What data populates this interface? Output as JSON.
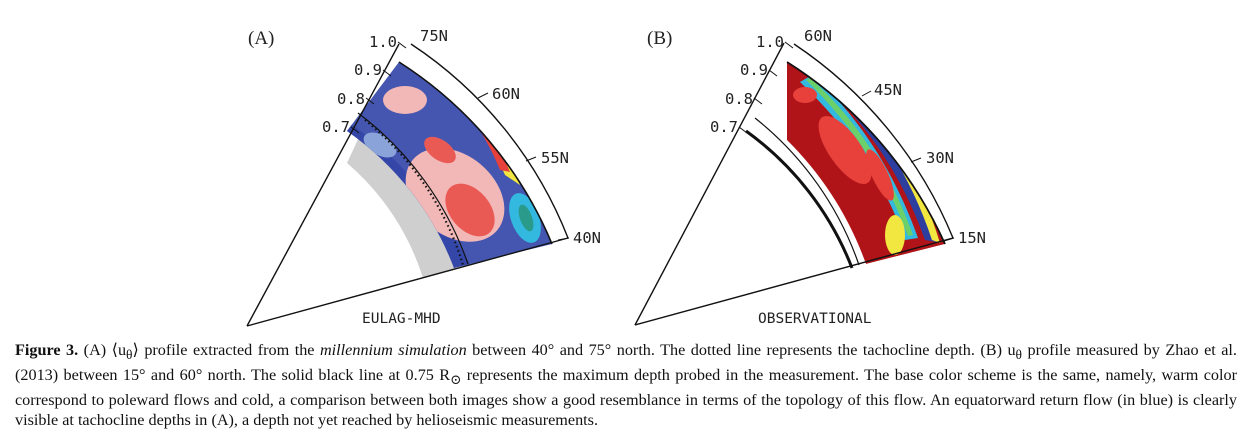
{
  "panelA": {
    "tag": "(A)",
    "title": "EULAG-MHD",
    "radius_labels": [
      "1.0",
      "0.9",
      "0.8",
      "0.7"
    ],
    "lat_labels": [
      "75N",
      "60N",
      "55N",
      "40N"
    ]
  },
  "panelB": {
    "tag": "(B)",
    "title": "OBSERVATIONAL",
    "radius_labels": [
      "1.0",
      "0.9",
      "0.8",
      "0.7"
    ],
    "lat_labels": [
      "60N",
      "45N",
      "30N",
      "15N"
    ]
  },
  "caption": {
    "label": "Figure 3.",
    "part1": " (A) ⟨u",
    "sub1": "θ",
    "part2": "⟩ profile extracted from the ",
    "italic1": "millennium simulation",
    "part3": " between 40° and 75° north. The dotted line represents the tachocline depth. (B) u",
    "sub2": "θ",
    "part4": " profile measured by Zhao et al. (2013) between 15° and 60° north. The solid black line at 0.75 R",
    "sub3": "⊙",
    "part5": " represents the maximum depth probed in the measurement. The base color scheme is the same, namely, warm color correspond to poleward flows and cold, a comparison between both images show a good resemblance in terms of the topology of this flow. An equatorward return flow (in blue) is clearly visible at tachocline depths in (A), a depth not yet reached by helioseismic measurements."
  },
  "colors": {
    "red": "#e8403a",
    "dark_red": "#b01418",
    "blue": "#2d3f9e",
    "light_blue": "#8aa3d8",
    "cyan": "#33b8e0",
    "yellow": "#f2e640",
    "gray": "#cfcfcf"
  }
}
